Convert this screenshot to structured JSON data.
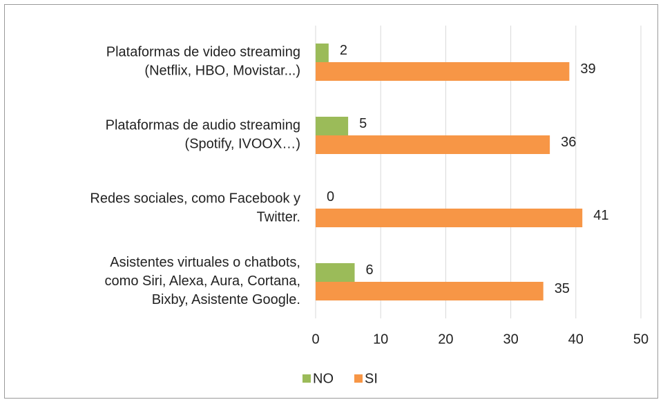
{
  "chart_data": {
    "type": "hbar",
    "categories": [
      "Plataformas de video streaming\n(Netflix, HBO, Movistar...)",
      "Plataformas de audio streaming\n(Spotify, IVOOX…)",
      "Redes sociales, como Facebook y\nTwitter.",
      "Asistentes virtuales o chatbots,\ncomo Siri, Alexa, Aura, Cortana,\nBixby, Asistente Google."
    ],
    "series": [
      {
        "name": "NO",
        "color": "#9bbb59",
        "values": [
          2,
          5,
          0,
          6
        ]
      },
      {
        "name": "SI",
        "color": "#f79646",
        "values": [
          39,
          36,
          41,
          35
        ]
      }
    ],
    "xlim": [
      0,
      50
    ],
    "xticks": [
      0,
      10,
      20,
      30,
      40,
      50
    ],
    "grid": true,
    "legend": "bottom"
  }
}
